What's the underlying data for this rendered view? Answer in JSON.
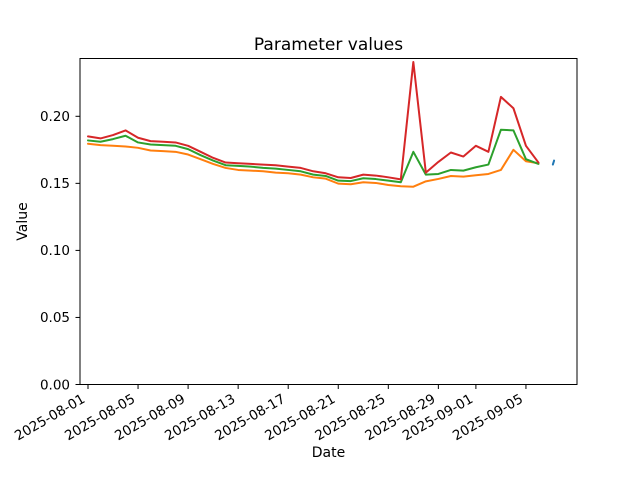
{
  "chart_data": {
    "type": "line",
    "title": "Parameter values",
    "xlabel": "Date",
    "ylabel": "Value",
    "grid": false,
    "legend": "none",
    "start_date": "2025-08-01",
    "ylim": [
      0,
      0.2431
    ],
    "x_range_days": [
      -0.639,
      39.08
    ],
    "y_ticks": [
      0.0,
      0.05,
      0.1,
      0.15,
      0.2
    ],
    "y_tick_labels": [
      "0.00",
      "0.05",
      "0.10",
      "0.15",
      "0.20"
    ],
    "x_ticks": [
      "2025-08-01",
      "2025-08-05",
      "2025-08-09",
      "2025-08-13",
      "2025-08-17",
      "2025-08-21",
      "2025-08-25",
      "2025-08-29",
      "2025-09-01",
      "2025-09-05"
    ],
    "dates": [
      "2025-08-01",
      "2025-08-02",
      "2025-08-03",
      "2025-08-04",
      "2025-08-05",
      "2025-08-06",
      "2025-08-07",
      "2025-08-08",
      "2025-08-09",
      "2025-08-10",
      "2025-08-11",
      "2025-08-12",
      "2025-08-13",
      "2025-08-14",
      "2025-08-15",
      "2025-08-16",
      "2025-08-17",
      "2025-08-18",
      "2025-08-19",
      "2025-08-20",
      "2025-08-21",
      "2025-08-22",
      "2025-08-23",
      "2025-08-24",
      "2025-08-25",
      "2025-08-26",
      "2025-08-27",
      "2025-08-28",
      "2025-08-29",
      "2025-08-30",
      "2025-08-31",
      "2025-09-01",
      "2025-09-02",
      "2025-09-03",
      "2025-09-04",
      "2025-09-05",
      "2025-09-06"
    ],
    "series": [
      {
        "name": "orange-series",
        "color": "#ff7f0e",
        "values": [
          0.1795,
          0.1785,
          0.178,
          0.1775,
          0.1765,
          0.1745,
          0.174,
          0.1735,
          0.1715,
          0.168,
          0.1645,
          0.1615,
          0.16,
          0.1595,
          0.159,
          0.158,
          0.1575,
          0.1565,
          0.1545,
          0.1535,
          0.1498,
          0.1493,
          0.1508,
          0.1503,
          0.1488,
          0.1478,
          0.1475,
          0.1515,
          0.1533,
          0.1555,
          0.155,
          0.156,
          0.157,
          0.16,
          0.175,
          0.1665,
          0.165
        ]
      },
      {
        "name": "green-series",
        "color": "#2ca02c",
        "values": [
          0.182,
          0.181,
          0.183,
          0.1855,
          0.1805,
          0.179,
          0.1785,
          0.178,
          0.1755,
          0.171,
          0.167,
          0.1635,
          0.163,
          0.1625,
          0.1615,
          0.161,
          0.16,
          0.159,
          0.1565,
          0.1555,
          0.152,
          0.1517,
          0.1538,
          0.1532,
          0.152,
          0.1508,
          0.1735,
          0.1565,
          0.157,
          0.16,
          0.1595,
          0.162,
          0.164,
          0.19,
          0.1895,
          0.168,
          0.1645
        ]
      },
      {
        "name": "red-series",
        "color": "#d62728",
        "values": [
          0.185,
          0.1835,
          0.186,
          0.1895,
          0.184,
          0.1815,
          0.181,
          0.1805,
          0.178,
          0.1735,
          0.169,
          0.1655,
          0.165,
          0.1645,
          0.164,
          0.1635,
          0.1625,
          0.1615,
          0.159,
          0.1575,
          0.1545,
          0.154,
          0.1565,
          0.1558,
          0.1545,
          0.153,
          0.2405,
          0.158,
          0.166,
          0.173,
          0.17,
          0.178,
          0.1735,
          0.2145,
          0.206,
          0.178,
          0.1655
        ]
      },
      {
        "name": "blue-series",
        "color": "#1f77b4",
        "x_days": [
          37.15,
          37.25
        ],
        "values": [
          0.164,
          0.167
        ]
      }
    ]
  }
}
